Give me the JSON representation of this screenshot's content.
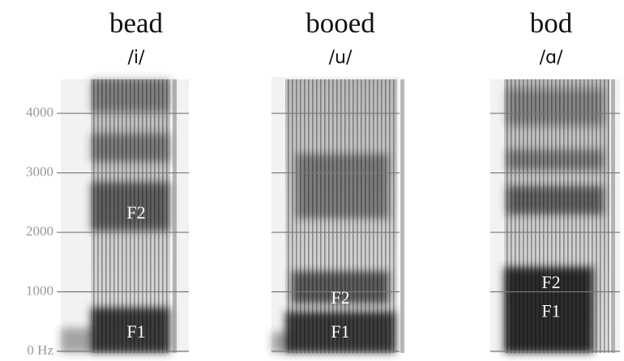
{
  "yaxis": {
    "ylim": [
      0,
      4600
    ],
    "yticks": [
      {
        "value": 0,
        "label": "0 Hz"
      },
      1000,
      2000,
      3000,
      4000
    ]
  },
  "panels": [
    {
      "word": "bead",
      "ipa": "/i/",
      "formants": [
        {
          "label": "F2",
          "value": 2300
        },
        {
          "label": "F1",
          "value": 300
        }
      ]
    },
    {
      "word": "booed",
      "ipa": "/u/",
      "formants": [
        {
          "label": "F2",
          "value": 870
        },
        {
          "label": "F1",
          "value": 300
        }
      ]
    },
    {
      "word": "bod",
      "ipa": "/ɑ/",
      "formants": [
        {
          "label": "F2",
          "value": 1130
        },
        {
          "label": "F1",
          "value": 650
        }
      ]
    }
  ]
}
